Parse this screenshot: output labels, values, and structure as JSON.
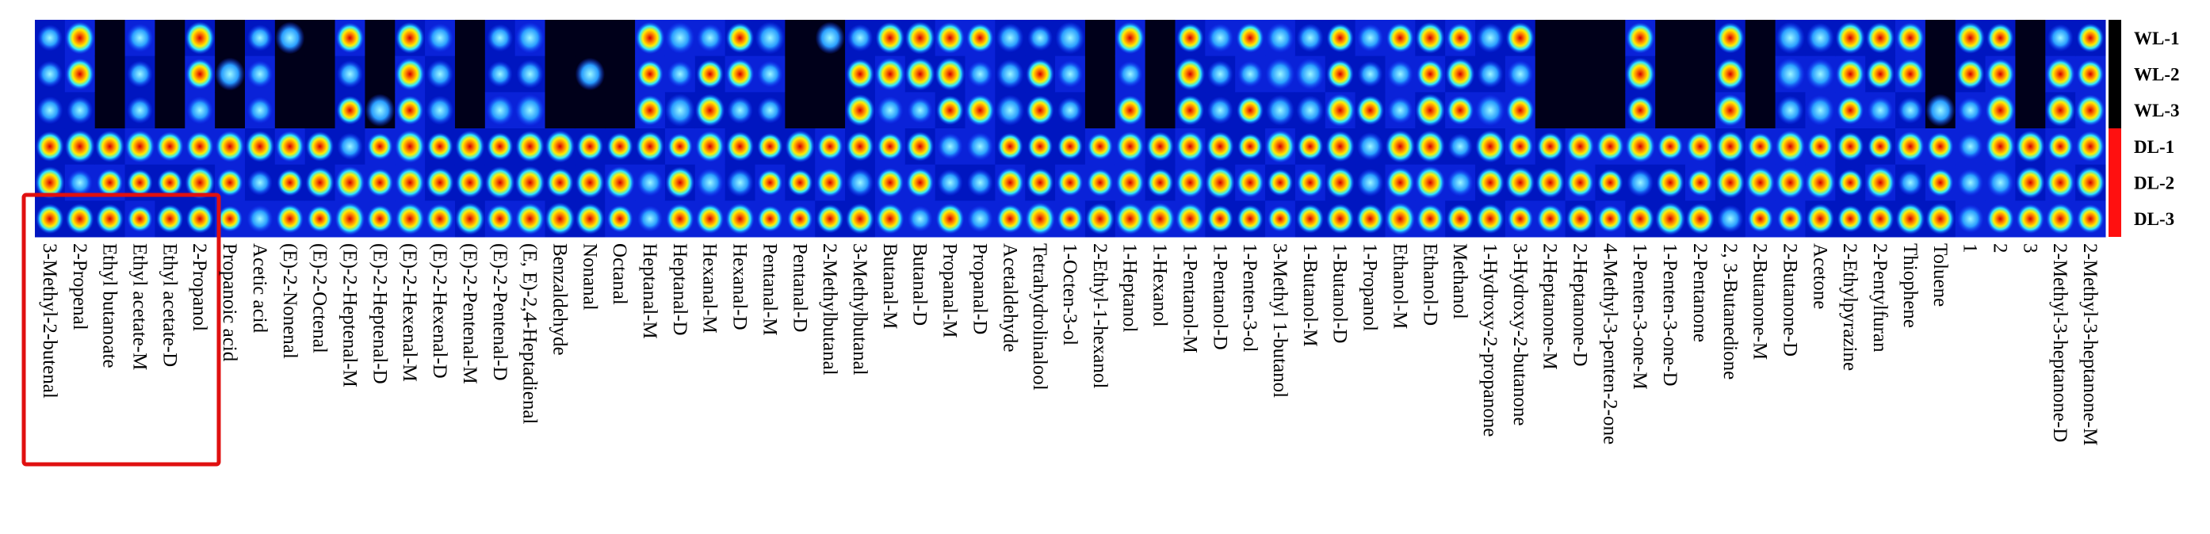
{
  "chart_data": {
    "type": "heatmap",
    "categories": [
      "3-Methyl-2-butenal",
      "2-Propenal",
      "Ethyl butanoate",
      "Ethyl acetate-M",
      "Ethyl acetate-D",
      "2-Propanol",
      "Propanoic acid",
      "Acetic acid",
      "(E)-2-Nonenal",
      "(E)-2-Octenal",
      "(E)-2-Heptenal-M",
      "(E)-2-Heptenal-D",
      "(E)-2-Hexenal-M",
      "(E)-2-Hexenal-D",
      "(E)-2-Pentenal-M",
      "(E)-2-Pentenal-D",
      "(E, E)-2,4-Heptadienal",
      "Benzaldehyde",
      "Nonanal",
      "Octanal",
      "Heptanal-M",
      "Heptanal-D",
      "Hexanal-M",
      "Hexanal-D",
      "Pentanal-M",
      "Pentanal-D",
      "2-Methylbutanal",
      "3-Methylbutanal",
      "Butanal-M",
      "Butanal-D",
      "Propanal-M",
      "Propanal-D",
      "Acetaldehyde",
      "Tetrahydrolinalool",
      "1-Octen-3-ol",
      "2-Ethyl-1-hexanol",
      "1-Heptanol",
      "1-Hexanol",
      "1-Pentanol-M",
      "1-Pentanol-D",
      "1-Penten-3-ol",
      "3-Methyl 1-butanol",
      "1-Butanol-M",
      "1-Butanol-D",
      "1-Propanol",
      "Ethanol-M",
      "Ethanol-D",
      "Methanol",
      "1-Hydroxy-2-propanone",
      "3-Hydroxy-2-butanone",
      "2-Heptanone-M",
      "2-Heptanone-D",
      "4-Methyl-3-penten-2-one",
      "1-Penten-3-one-M",
      "1-Penten-3-one-D",
      "2-Pentanone",
      "2, 3-Butanedione",
      "2-Butanone-M",
      "2-Butanone-D",
      "Acetone",
      "2-Ethylpyrazine",
      "2-Pentylfuran",
      "Thiophene",
      "Toluene",
      "1",
      "2",
      "3",
      "2-Methyl-3-heptanone-D",
      "2-Methyl-3-heptanone-M"
    ],
    "rows": [
      "WL-1",
      "WL-2",
      "WL-3",
      "DL-1",
      "DL-2",
      "DL-3"
    ]
  }
}
